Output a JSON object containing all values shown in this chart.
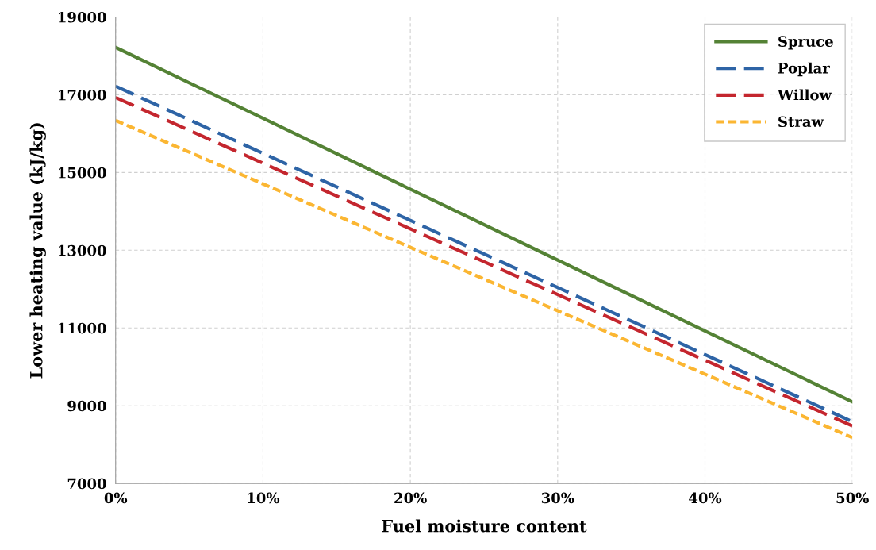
{
  "chart_data": {
    "type": "line",
    "xlabel": "Fuel moisture content",
    "ylabel": "Lower heating value (kJ/kg)",
    "x": [
      0,
      50
    ],
    "series": [
      {
        "name": "Spruce",
        "color": "#548235",
        "values": [
          18220,
          9100
        ],
        "line_style": "solid"
      },
      {
        "name": "Poplar",
        "color": "#2e64a6",
        "values": [
          17220,
          8590
        ],
        "line_style": "dashed"
      },
      {
        "name": "Willow",
        "color": "#c4262e",
        "values": [
          16930,
          8480
        ],
        "line_style": "dashed"
      },
      {
        "name": "Straw",
        "color": "#fbb632",
        "values": [
          16340,
          8180
        ],
        "line_style": "dotted"
      }
    ],
    "xlim": [
      0,
      50
    ],
    "xticks": [
      {
        "value": 0,
        "label": "0%"
      },
      {
        "value": 10,
        "label": "10%"
      },
      {
        "value": 20,
        "label": "20%"
      },
      {
        "value": 30,
        "label": "30%"
      },
      {
        "value": 40,
        "label": "40%"
      },
      {
        "value": 50,
        "label": "50%"
      }
    ],
    "ylim": [
      7000,
      19000
    ],
    "yticks": [
      7000,
      9000,
      11000,
      13000,
      15000,
      17000,
      19000
    ],
    "grid": true,
    "legend": "top right",
    "marker": "none"
  }
}
